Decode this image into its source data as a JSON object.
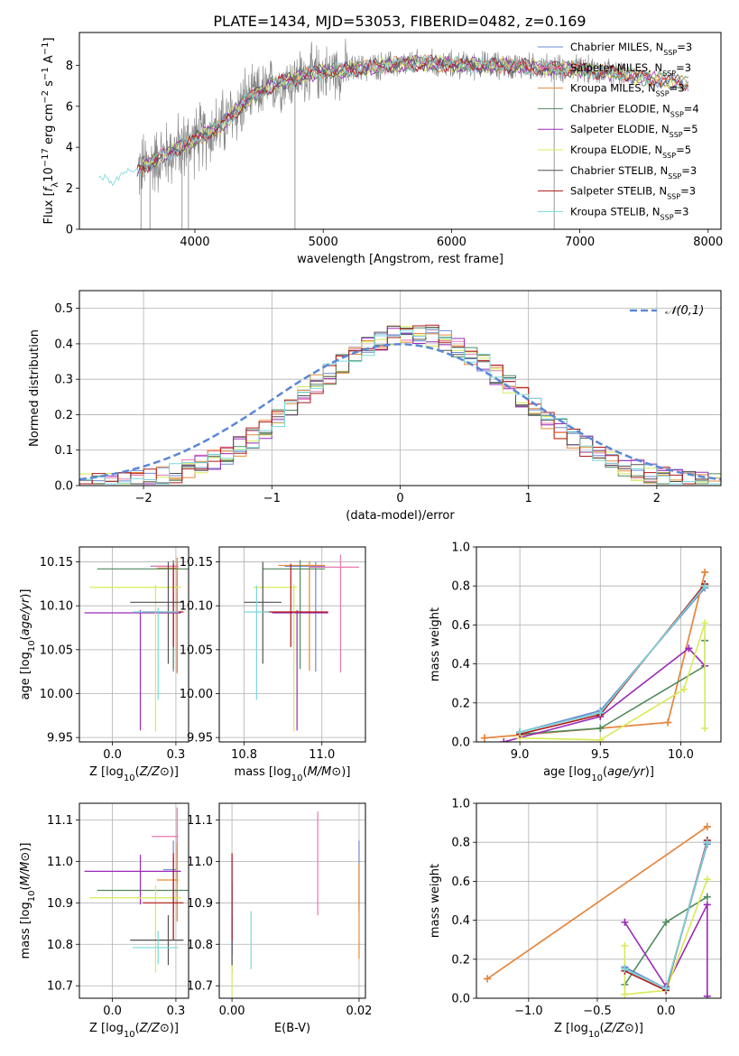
{
  "title": "PLATE=1434, MJD=53053, FIBERID=0482, z=0.169",
  "colors": {
    "data": "#808080",
    "Chabrier MILES": "#6a8ad6",
    "Salpeter MILES": "#e878b0",
    "Kroupa MILES": "#e68a38",
    "Chabrier ELODIE": "#4f8a5c",
    "Salpeter ELODIE": "#9a2ab8",
    "Kroupa ELODIE": "#d8ea58",
    "Chabrier STELIB": "#505050",
    "Salpeter STELIB": "#b01818",
    "Kroupa STELIB": "#7ad8dc",
    "normal": "#5b87d6"
  },
  "chart_data": [
    {
      "id": "spectrum",
      "type": "line",
      "xlabel": "wavelength [Angstrom, rest frame]",
      "ylabel": "Flux [f_λ 10^-17 erg cm^-2 s^-1 A^-1]",
      "xlim": [
        3100,
        8100
      ],
      "ylim": [
        0,
        9.6
      ],
      "xticks": [
        4000,
        5000,
        6000,
        7000,
        8000
      ],
      "yticks": [
        0,
        2,
        4,
        6,
        8
      ],
      "grid": false,
      "legend": "top-right",
      "legend_entries": [
        {
          "name": "Chabrier MILES",
          "nssp": "3"
        },
        {
          "name": "Salpeter MILES",
          "nssp": "3"
        },
        {
          "name": "Kroupa MILES",
          "nssp": "3"
        },
        {
          "name": "Chabrier ELODIE",
          "nssp": "4"
        },
        {
          "name": "Salpeter ELODIE",
          "nssp": "5"
        },
        {
          "name": "Kroupa ELODIE",
          "nssp": "5"
        },
        {
          "name": "Chabrier STELIB",
          "nssp": "3"
        },
        {
          "name": "Salpeter STELIB",
          "nssp": "3"
        },
        {
          "name": "Kroupa STELIB",
          "nssp": "3"
        }
      ],
      "continuum": {
        "x": [
          3250,
          3500,
          3700,
          3950,
          4200,
          4400,
          4600,
          4900,
          5200,
          5500,
          5800,
          6100,
          6400,
          6700,
          7000,
          7300,
          7600,
          7850
        ],
        "y": [
          2.4,
          2.7,
          3.4,
          4.2,
          5.0,
          6.3,
          7.0,
          7.6,
          7.8,
          8.0,
          8.1,
          8.0,
          8.0,
          7.9,
          7.8,
          7.6,
          7.3,
          7.1
        ]
      }
    },
    {
      "id": "residuals",
      "type": "histogram",
      "xlabel": "(data-model)/error",
      "ylabel": "Normed distribution",
      "xlim": [
        -2.5,
        2.5
      ],
      "ylim": [
        0,
        0.55
      ],
      "xticks": [
        -2,
        -1,
        0,
        1,
        2
      ],
      "yticks": [
        0.0,
        0.1,
        0.2,
        0.3,
        0.4,
        0.5
      ],
      "grid": true,
      "legend": "top-right",
      "legend_label": "𝒩(0,1)",
      "bin_width": 0.1
    },
    {
      "id": "age_vs_Z",
      "type": "errorbar",
      "xlabel": "Z [log10(Z/Z⊙)]",
      "ylabel": "age [log10(age/yr)]",
      "xlim": [
        -0.13,
        0.3
      ],
      "ylim": [
        9.945,
        10.167
      ],
      "xticks": [
        0.0,
        0.25
      ],
      "yticks": [
        9.95,
        10.0,
        10.05,
        10.1,
        10.15
      ],
      "grid": true,
      "points": [
        {
          "model": "Chabrier MILES",
          "x": 0.24,
          "xerr": [
            0.09,
            0.01
          ],
          "y": 10.145,
          "yerr": [
            0.12,
            0.005
          ]
        },
        {
          "model": "Salpeter MILES",
          "x": 0.255,
          "xerr": [
            0.1,
            0.005
          ],
          "y": 10.145,
          "yerr": [
            0.12,
            0.005
          ]
        },
        {
          "model": "Kroupa MILES",
          "x": 0.255,
          "xerr": [
            0.08,
            0.005
          ],
          "y": 10.143,
          "yerr": [
            0.12,
            0.012
          ]
        },
        {
          "model": "Chabrier ELODIE",
          "x": 0.24,
          "xerr": [
            0.3,
            0.06
          ],
          "y": 10.142,
          "yerr": [
            0.114,
            0.01
          ]
        },
        {
          "model": "Salpeter ELODIE",
          "x": 0.11,
          "xerr": [
            0.22,
            0.16
          ],
          "y": 10.092,
          "yerr": [
            0.134,
            0.003
          ]
        },
        {
          "model": "Kroupa ELODIE",
          "x": 0.17,
          "xerr": [
            0.26,
            0.1
          ],
          "y": 10.121,
          "yerr": [
            0.164,
            0.003
          ]
        },
        {
          "model": "Chabrier STELIB",
          "x": 0.22,
          "xerr": [
            0.15,
            0.06
          ],
          "y": 10.104,
          "yerr": [
            0.07,
            0.046
          ]
        },
        {
          "model": "Salpeter STELIB",
          "x": 0.24,
          "xerr": [
            0.12,
            0.04
          ],
          "y": 10.093,
          "yerr": [
            0.04,
            0.055
          ]
        },
        {
          "model": "Kroupa STELIB",
          "x": 0.18,
          "xerr": [
            0.1,
            0.08
          ],
          "y": 10.093,
          "yerr": [
            0.1,
            0.005
          ]
        }
      ]
    },
    {
      "id": "age_vs_mass",
      "type": "errorbar",
      "xlabel": "mass [log10(M/M⊙)]",
      "ylabel": "",
      "xlim": [
        10.67,
        11.14
      ],
      "ylim": [
        9.945,
        10.167
      ],
      "xticks": [
        10.75,
        11.0
      ],
      "yticks": [
        9.95,
        10.0,
        10.05,
        10.1,
        10.15
      ],
      "grid": true,
      "points": [
        {
          "model": "Chabrier MILES",
          "x": 10.98,
          "xerr": [
            0.1,
            0.03
          ],
          "y": 10.145,
          "yerr": [
            0.12,
            0.005
          ]
        },
        {
          "model": "Salpeter MILES",
          "x": 11.06,
          "xerr": [
            0.1,
            0.06
          ],
          "y": 10.144,
          "yerr": [
            0.12,
            0.014
          ]
        },
        {
          "model": "Kroupa MILES",
          "x": 10.96,
          "xerr": [
            0.1,
            0.05
          ],
          "y": 10.146,
          "yerr": [
            0.12,
            0.005
          ]
        },
        {
          "model": "Chabrier ELODIE",
          "x": 10.93,
          "xerr": [
            0.12,
            0.08
          ],
          "y": 10.142,
          "yerr": [
            0.114,
            0.01
          ]
        },
        {
          "model": "Salpeter ELODIE",
          "x": 10.92,
          "xerr": [
            0.08,
            0.1
          ],
          "y": 10.092,
          "yerr": [
            0.134,
            0.003
          ]
        },
        {
          "model": "Kroupa ELODIE",
          "x": 10.91,
          "xerr": [
            0.13,
            0.01
          ],
          "y": 10.121,
          "yerr": [
            0.164,
            0.003
          ]
        },
        {
          "model": "Chabrier STELIB",
          "x": 10.81,
          "xerr": [
            0.06,
            0.06
          ],
          "y": 10.104,
          "yerr": [
            0.07,
            0.046
          ]
        },
        {
          "model": "Salpeter STELIB",
          "x": 10.9,
          "xerr": [
            0.09,
            0.12
          ],
          "y": 10.093,
          "yerr": [
            0.04,
            0.055
          ]
        },
        {
          "model": "Kroupa STELIB",
          "x": 10.79,
          "xerr": [
            0.04,
            0.04
          ],
          "y": 10.093,
          "yerr": [
            0.1,
            0.03
          ]
        }
      ]
    },
    {
      "id": "massweight_vs_age",
      "type": "line",
      "xlabel": "age [log10(age/yr)]",
      "ylabel": "mass weight",
      "xlim": [
        8.73,
        10.25
      ],
      "ylim": [
        0,
        1.0
      ],
      "xticks": [
        9.0,
        9.5,
        10.0
      ],
      "yticks": [
        0.0,
        0.2,
        0.4,
        0.6,
        0.8,
        1.0
      ],
      "grid": true,
      "series": [
        {
          "model": "Chabrier MILES",
          "x": [
            9.0,
            9.5,
            10.15
          ],
          "y": [
            0.05,
            0.16,
            0.79
          ]
        },
        {
          "model": "Salpeter MILES",
          "x": [
            8.78,
            9.5,
            9.92,
            10.15
          ],
          "y": [
            0.02,
            0.07,
            0.1,
            0.87
          ]
        },
        {
          "model": "Kroupa MILES",
          "x": [
            8.78,
            9.5,
            9.92,
            10.15
          ],
          "y": [
            0.02,
            0.07,
            0.1,
            0.87
          ]
        },
        {
          "model": "Chabrier ELODIE",
          "x": [
            9.0,
            9.5,
            10.15,
            10.15
          ],
          "y": [
            0.04,
            0.07,
            0.39,
            0.52
          ]
        },
        {
          "model": "Salpeter ELODIE",
          "x": [
            8.9,
            9.5,
            10.05,
            10.15
          ],
          "y": [
            0.0,
            0.13,
            0.48,
            0.39
          ]
        },
        {
          "model": "Kroupa ELODIE",
          "x": [
            9.0,
            9.5,
            10.02,
            10.15,
            10.15
          ],
          "y": [
            0.02,
            0.01,
            0.27,
            0.61,
            0.07
          ]
        },
        {
          "model": "Chabrier STELIB",
          "x": [
            9.0,
            9.5,
            10.15
          ],
          "y": [
            0.05,
            0.15,
            0.8
          ]
        },
        {
          "model": "Salpeter STELIB",
          "x": [
            9.0,
            9.5,
            10.15
          ],
          "y": [
            0.04,
            0.14,
            0.81
          ]
        },
        {
          "model": "Kroupa STELIB",
          "x": [
            9.0,
            9.5,
            10.15
          ],
          "y": [
            0.05,
            0.15,
            0.8
          ]
        }
      ]
    },
    {
      "id": "mass_vs_Z",
      "type": "errorbar",
      "xlabel": "Z [log10(Z/Z⊙)]",
      "ylabel": "mass [log10(M/M⊙)]",
      "xlim": [
        -0.13,
        0.3
      ],
      "ylim": [
        10.67,
        11.14
      ],
      "xticks": [
        0.0,
        0.25
      ],
      "yticks": [
        10.7,
        10.8,
        10.9,
        11.0,
        11.1
      ],
      "grid": true,
      "points": [
        {
          "model": "Chabrier MILES",
          "x": 0.24,
          "xerr": [
            0.04,
            0.01
          ],
          "y": 10.98,
          "yerr": [
            0.1,
            0.07
          ]
        },
        {
          "model": "Salpeter MILES",
          "x": 0.255,
          "xerr": [
            0.1,
            0.005
          ],
          "y": 11.06,
          "yerr": [
            0.1,
            0.07
          ]
        },
        {
          "model": "Kroupa MILES",
          "x": 0.255,
          "xerr": [
            0.08,
            0.005
          ],
          "y": 10.955,
          "yerr": [
            0.1,
            0.09
          ]
        },
        {
          "model": "Chabrier ELODIE",
          "x": 0.24,
          "xerr": [
            0.3,
            0.06
          ],
          "y": 10.93,
          "yerr": [
            0.12,
            0.08
          ]
        },
        {
          "model": "Salpeter ELODIE",
          "x": 0.11,
          "xerr": [
            0.22,
            0.16
          ],
          "y": 10.976,
          "yerr": [
            0.08,
            0.04
          ]
        },
        {
          "model": "Kroupa ELODIE",
          "x": 0.17,
          "xerr": [
            0.26,
            0.1
          ],
          "y": 10.912,
          "yerr": [
            0.18,
            0.03
          ]
        },
        {
          "model": "Chabrier STELIB",
          "x": 0.22,
          "xerr": [
            0.15,
            0.06
          ],
          "y": 10.81,
          "yerr": [
            0.06,
            0.06
          ]
        },
        {
          "model": "Salpeter STELIB",
          "x": 0.24,
          "xerr": [
            0.12,
            0.04
          ],
          "y": 10.9,
          "yerr": [
            0.09,
            0.12
          ]
        },
        {
          "model": "Kroupa STELIB",
          "x": 0.18,
          "xerr": [
            0.1,
            0.08
          ],
          "y": 10.792,
          "yerr": [
            0.04,
            0.04
          ]
        }
      ]
    },
    {
      "id": "mass_vs_EBV",
      "type": "errorbar",
      "xlabel": "E(B-V)",
      "ylabel": "",
      "xlim": [
        -0.002,
        0.021
      ],
      "ylim": [
        10.67,
        11.14
      ],
      "xticks": [
        0.0,
        0.02
      ],
      "yticks": [
        10.7,
        10.8,
        10.9,
        11.0,
        11.1
      ],
      "grid": true,
      "points": [
        {
          "model": "Chabrier MILES",
          "x": 0.02,
          "xerr": [
            0,
            0
          ],
          "y": 10.98,
          "yerr": [
            0.1,
            0.07
          ]
        },
        {
          "model": "Salpeter MILES",
          "x": 0.0135,
          "xerr": [
            0,
            0
          ],
          "y": 11.0,
          "yerr": [
            0.13,
            0.12
          ]
        },
        {
          "model": "Kroupa MILES",
          "x": 0.02,
          "xerr": [
            0,
            0
          ],
          "y": 10.955,
          "yerr": [
            0.19,
            0.04
          ]
        },
        {
          "model": "Chabrier ELODIE",
          "x": 0.0,
          "xerr": [
            0,
            0
          ],
          "y": 10.93,
          "yerr": [
            0.2,
            0.02
          ]
        },
        {
          "model": "Salpeter ELODIE",
          "x": 0.0,
          "xerr": [
            0,
            0
          ],
          "y": 10.976,
          "yerr": [
            0.2,
            0.04
          ]
        },
        {
          "model": "Kroupa ELODIE",
          "x": 0.0,
          "xerr": [
            0,
            0
          ],
          "y": 10.72,
          "yerr": [
            0.05,
            0.03
          ]
        },
        {
          "model": "Chabrier STELIB",
          "x": 0.0,
          "xerr": [
            0,
            0
          ],
          "y": 10.81,
          "yerr": [
            0.06,
            0.06
          ]
        },
        {
          "model": "Salpeter STELIB",
          "x": 0.0,
          "xerr": [
            0,
            0
          ],
          "y": 10.9,
          "yerr": [
            0.09,
            0.12
          ]
        },
        {
          "model": "Kroupa STELIB",
          "x": 0.003,
          "xerr": [
            0,
            0
          ],
          "y": 10.81,
          "yerr": [
            0.07,
            0.07
          ]
        }
      ]
    },
    {
      "id": "massweight_vs_Z",
      "type": "line",
      "xlabel": "Z [log10(Z/Z⊙)]",
      "ylabel": "mass weight",
      "xlim": [
        -1.38,
        0.4
      ],
      "ylim": [
        0,
        1.0
      ],
      "xticks": [
        -1.0,
        -0.5,
        0.0
      ],
      "yticks": [
        0.0,
        0.2,
        0.4,
        0.6,
        0.8,
        1.0
      ],
      "grid": true,
      "series": [
        {
          "model": "Chabrier MILES",
          "x": [
            -0.3,
            0.0,
            0.3
          ],
          "y": [
            0.16,
            0.05,
            0.79
          ]
        },
        {
          "model": "Salpeter MILES",
          "x": [
            -1.3,
            0.3
          ],
          "y": [
            0.1,
            0.88
          ]
        },
        {
          "model": "Kroupa MILES",
          "x": [
            -1.3,
            0.3
          ],
          "y": [
            0.1,
            0.88
          ]
        },
        {
          "model": "Chabrier ELODIE",
          "x": [
            -0.3,
            0.0,
            0.3
          ],
          "y": [
            0.07,
            0.39,
            0.52
          ]
        },
        {
          "model": "Salpeter ELODIE",
          "x": [
            -0.3,
            0.0,
            0.3,
            0.3
          ],
          "y": [
            0.39,
            0.06,
            0.48,
            0.01
          ]
        },
        {
          "model": "Kroupa ELODIE",
          "x": [
            -0.3,
            -0.3,
            0.0,
            0.3
          ],
          "y": [
            0.27,
            0.02,
            0.04,
            0.61
          ]
        },
        {
          "model": "Chabrier STELIB",
          "x": [
            -0.3,
            0.0,
            0.3
          ],
          "y": [
            0.15,
            0.05,
            0.8
          ]
        },
        {
          "model": "Salpeter STELIB",
          "x": [
            -0.3,
            0.0,
            0.3
          ],
          "y": [
            0.14,
            0.04,
            0.81
          ]
        },
        {
          "model": "Kroupa STELIB",
          "x": [
            -0.3,
            0.0,
            0.3
          ],
          "y": [
            0.15,
            0.05,
            0.8
          ]
        }
      ]
    }
  ]
}
